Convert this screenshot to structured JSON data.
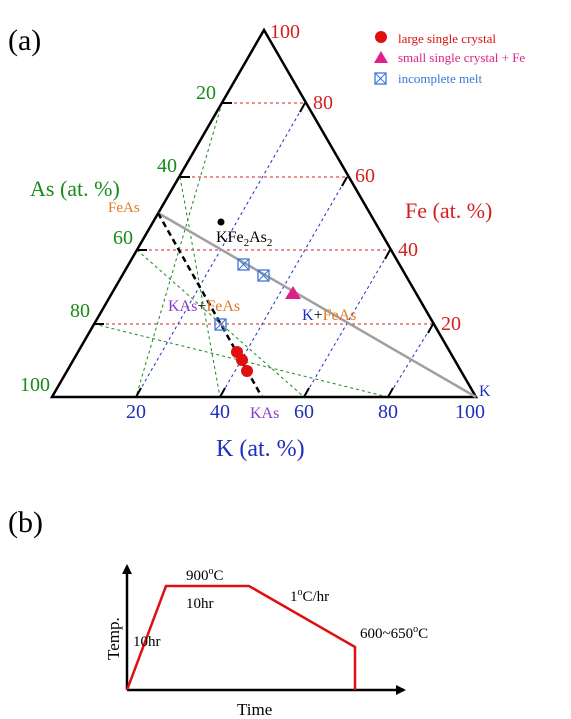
{
  "panel_a": {
    "label": "(a)",
    "apex_top_label": "100",
    "left_axis": {
      "title": "As (at. %)",
      "ticks": [
        "20",
        "40",
        "60",
        "80",
        "100"
      ],
      "color": "#1a8a1a"
    },
    "right_axis": {
      "title": "Fe (at. %)",
      "ticks": [
        "20",
        "40",
        "60",
        "80"
      ],
      "color": "#d42020"
    },
    "bottom_axis": {
      "title": "K (at. %)",
      "ticks": [
        "20",
        "40",
        "60",
        "80",
        "100"
      ],
      "color": "#1f2fbf"
    },
    "compound_labels": {
      "feas": "FeAs",
      "kfe2as2_main": "KFe",
      "kfe2as2_sub1": "2",
      "kfe2as2_mid": "As",
      "kfe2as2_sub2": "2",
      "kas_feas_left": "KAs",
      "kas_feas_plus": "+",
      "kas_feas_right": "FeAs",
      "k_feas_left": "K",
      "k_feas_plus": "+",
      "k_feas_right": "FeAs",
      "kas": "KAs",
      "k": "K"
    },
    "legend": [
      {
        "label": "large single crystal",
        "marker": "circle",
        "color": "#e01010"
      },
      {
        "label": "small single crystal + Fe",
        "marker": "triangle",
        "color": "#e0208a"
      },
      {
        "label": "incomplete melt",
        "marker": "boxed-x",
        "color": "#3a78d8"
      }
    ],
    "colors": {
      "compound_orange": "#e07a20",
      "compound_purple": "#8a3ac8",
      "tie_line_gray": "#a0a0a0"
    }
  },
  "panel_b": {
    "label": "(b)",
    "y_label": "Temp.",
    "x_label": "Time",
    "annotations": {
      "ramp": "10hr",
      "hold_temp": "900",
      "hold_temp_sup": "o",
      "hold_temp_unit": "C",
      "hold_time": "10hr",
      "cool_rate_1": "1",
      "cool_rate_sup": "o",
      "cool_rate_2": "C/hr",
      "end_temp": "600~650",
      "end_temp_sup": "o",
      "end_temp_unit": "C"
    },
    "profile_color": "#e01010"
  }
}
